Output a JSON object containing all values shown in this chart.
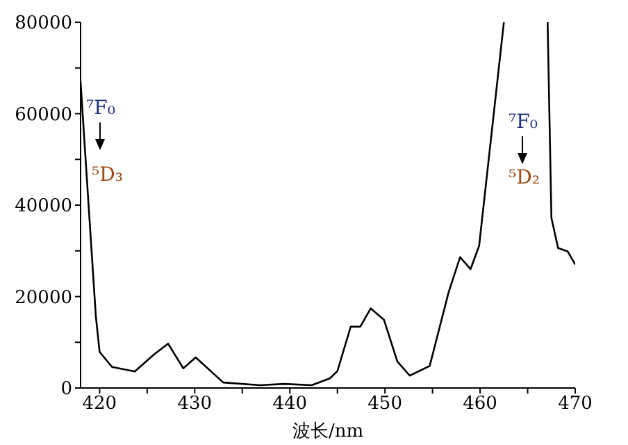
{
  "chart_data": {
    "type": "line",
    "xlabel": "波长/nm",
    "xlim": [
      418,
      470
    ],
    "ylim": [
      0,
      80000
    ],
    "xticks": [
      420,
      {
        "value": 425,
        "label": null
      },
      430,
      {
        "value": 435,
        "label": null
      },
      440,
      {
        "value": 445,
        "label": null
      },
      450,
      {
        "value": 455,
        "label": null
      },
      460,
      {
        "value": 465,
        "label": null
      },
      470
    ],
    "yticks": [
      0,
      {
        "value": 10000,
        "label": null
      },
      20000,
      {
        "value": 30000,
        "label": null
      },
      40000,
      {
        "value": 50000,
        "label": null
      },
      60000,
      {
        "value": 70000,
        "label": null
      },
      80000
    ],
    "marker": "none",
    "line_style": "solid",
    "annotations": [
      "⁷F₀",
      "⁵D₃",
      "⁷F₀",
      "⁵D₂"
    ],
    "series": [
      {
        "color": "#000000",
        "x": [
          418.0,
          418.8,
          419.6,
          420.0,
          421.3,
          423.7,
          425.7,
          427.2,
          428.8,
          430.1,
          433.0,
          436.9,
          439.4,
          442.3,
          444.2,
          445.0,
          446.4,
          447.4,
          448.5,
          449.9,
          451.3,
          452.6,
          454.7,
          456.7,
          457.9,
          459.0,
          459.9,
          462.5,
          464.8,
          467.1,
          467.5,
          468.2,
          469.2,
          470.0
        ],
        "values": [
          67000,
          41300,
          15800,
          7900,
          4600,
          3600,
          7300,
          9700,
          4300,
          6700,
          1200,
          600,
          900,
          600,
          2100,
          3700,
          13400,
          13400,
          17400,
          14900,
          5800,
          2700,
          4800,
          21000,
          28600,
          26000,
          31100,
          80000,
          null,
          80000,
          37200,
          30600,
          29900,
          27000
        ]
      }
    ]
  }
}
